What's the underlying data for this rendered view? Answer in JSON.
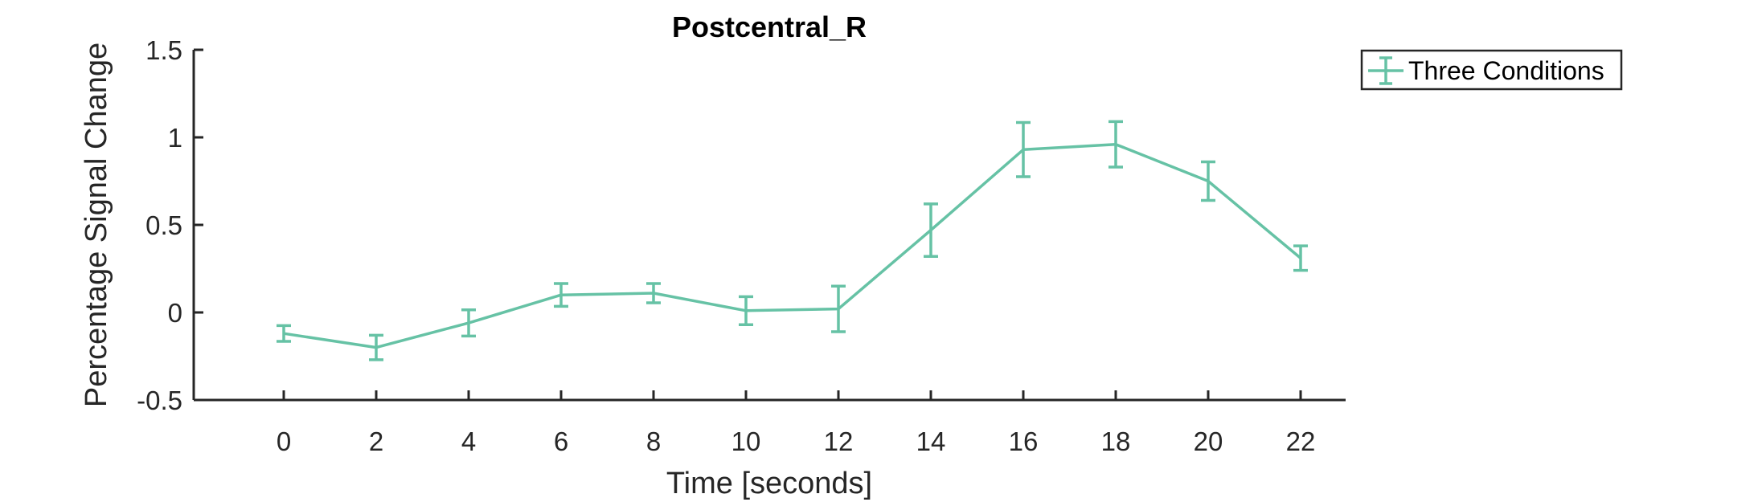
{
  "chart_data": {
    "type": "line",
    "title": "Postcentral_R",
    "xlabel": "Time [seconds]",
    "ylabel": "Percentage Signal Change",
    "xlim": [
      -5,
      25
    ],
    "ylim": [
      -0.5,
      1.5
    ],
    "xticks": [
      0,
      2,
      4,
      6,
      8,
      10,
      12,
      14,
      16,
      18,
      20,
      22
    ],
    "yticks": [
      -0.5,
      0,
      0.5,
      1,
      1.5
    ],
    "ytick_labels": [
      "-0.5",
      "0",
      "0.5",
      "1",
      "1.5"
    ],
    "grid": false,
    "legend_position": "top-right outside",
    "series": [
      {
        "name": "Three Conditions",
        "color": "#66c2a5",
        "x": [
          0,
          2,
          4,
          6,
          8,
          10,
          12,
          14,
          16,
          18,
          20,
          22
        ],
        "y": [
          -0.12,
          -0.2,
          -0.06,
          0.1,
          0.11,
          0.01,
          0.02,
          0.47,
          0.93,
          0.96,
          0.75,
          0.31
        ],
        "error": [
          0.045,
          0.07,
          0.075,
          0.065,
          0.055,
          0.08,
          0.13,
          0.15,
          0.155,
          0.13,
          0.11,
          0.07
        ]
      }
    ]
  }
}
